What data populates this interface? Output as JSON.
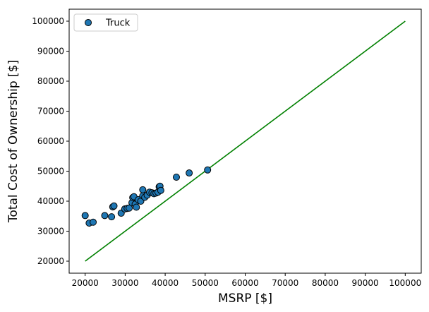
{
  "chart_data": {
    "type": "scatter",
    "title": "",
    "xlabel": "MSRP [$]",
    "ylabel": "Total Cost of Ownership [$]",
    "xlim": [
      16000,
      104000
    ],
    "ylim": [
      16000,
      104000
    ],
    "xticks": [
      20000,
      30000,
      40000,
      50000,
      60000,
      70000,
      80000,
      90000,
      100000
    ],
    "yticks": [
      20000,
      30000,
      40000,
      50000,
      60000,
      70000,
      80000,
      90000,
      100000
    ],
    "grid": false,
    "legend_position": "top-left",
    "series": [
      {
        "name": "Truck",
        "color": "#1f77b4",
        "edge_color": "#000000",
        "points": [
          {
            "x": 20000,
            "y": 35200
          },
          {
            "x": 21000,
            "y": 32700
          },
          {
            "x": 22000,
            "y": 33000
          },
          {
            "x": 24900,
            "y": 35200
          },
          {
            "x": 26600,
            "y": 34800
          },
          {
            "x": 26900,
            "y": 38100
          },
          {
            "x": 27200,
            "y": 38400
          },
          {
            "x": 29000,
            "y": 36000
          },
          {
            "x": 29900,
            "y": 37400
          },
          {
            "x": 30500,
            "y": 37600
          },
          {
            "x": 31000,
            "y": 37700
          },
          {
            "x": 31700,
            "y": 39500
          },
          {
            "x": 31900,
            "y": 41200
          },
          {
            "x": 32200,
            "y": 41500
          },
          {
            "x": 32500,
            "y": 39000
          },
          {
            "x": 32800,
            "y": 38000
          },
          {
            "x": 33300,
            "y": 40500
          },
          {
            "x": 33900,
            "y": 40000
          },
          {
            "x": 34400,
            "y": 41800
          },
          {
            "x": 34400,
            "y": 43800
          },
          {
            "x": 34900,
            "y": 41300
          },
          {
            "x": 35500,
            "y": 42000
          },
          {
            "x": 36100,
            "y": 43000
          },
          {
            "x": 36700,
            "y": 42800
          },
          {
            "x": 37200,
            "y": 42500
          },
          {
            "x": 37700,
            "y": 42700
          },
          {
            "x": 38200,
            "y": 43000
          },
          {
            "x": 38500,
            "y": 44800
          },
          {
            "x": 38700,
            "y": 45000
          },
          {
            "x": 38900,
            "y": 43600
          },
          {
            "x": 42800,
            "y": 48000
          },
          {
            "x": 46000,
            "y": 49400
          },
          {
            "x": 50600,
            "y": 50400
          }
        ]
      }
    ],
    "reference_line": {
      "color": "#008000",
      "points": [
        {
          "x": 20000,
          "y": 20000
        },
        {
          "x": 100000,
          "y": 100000
        }
      ]
    }
  }
}
